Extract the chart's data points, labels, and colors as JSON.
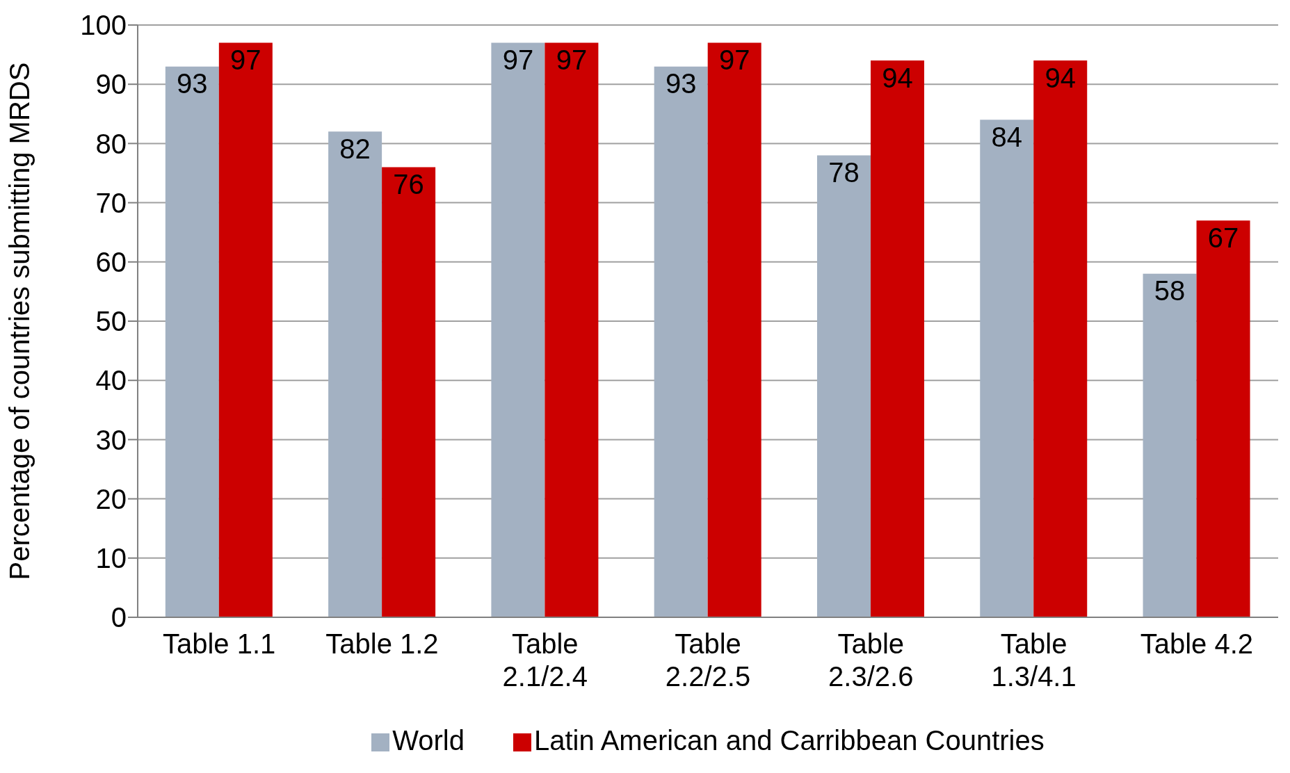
{
  "chart_data": {
    "type": "bar",
    "ylabel": "Percentage of countries submitting MRDS",
    "categories": [
      "Table 1.1",
      "Table 1.2",
      "Table 2.1/2.4",
      "Table 2.2/2.5",
      "Table 2.3/2.6",
      "Table 1.3/4.1",
      "Table 4.2"
    ],
    "series": [
      {
        "name": "World",
        "color": "#a3b1c2",
        "values": [
          93,
          82,
          97,
          93,
          78,
          84,
          58
        ]
      },
      {
        "name": "Latin American and Carribbean Countries",
        "color": "#cc0000",
        "values": [
          97,
          76,
          97,
          97,
          94,
          94,
          67
        ]
      }
    ],
    "ylim": [
      0,
      100
    ],
    "yticks": [
      0,
      10,
      20,
      30,
      40,
      50,
      60,
      70,
      80,
      90,
      100
    ],
    "grid": "y",
    "legend": "bottom",
    "data_labels": true
  }
}
